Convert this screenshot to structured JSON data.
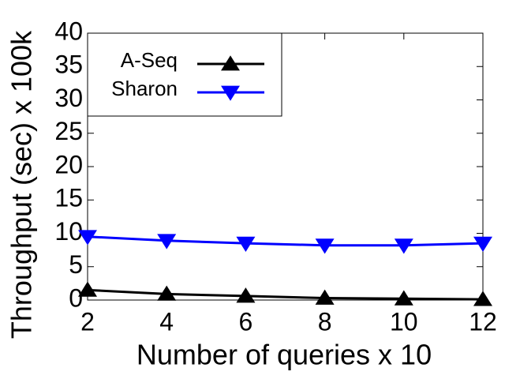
{
  "chart_data": {
    "type": "line",
    "xlabel": "Number of queries x 10",
    "ylabel": "Throughput (sec) x 100k",
    "x": [
      2,
      4,
      6,
      8,
      10,
      12
    ],
    "series": [
      {
        "name": "A-Seq",
        "color": "#000000",
        "marker": "triangle-up",
        "values": [
          1.5,
          0.9,
          0.6,
          0.3,
          0.2,
          0.1
        ]
      },
      {
        "name": "Sharon",
        "color": "#0000ff",
        "marker": "triangle-down",
        "values": [
          9.5,
          8.9,
          8.5,
          8.2,
          8.2,
          8.5
        ]
      }
    ],
    "xlim": [
      2,
      12
    ],
    "xticks": [
      2,
      4,
      6,
      8,
      10,
      12
    ],
    "ylim": [
      0,
      40
    ],
    "yticks": [
      0,
      5,
      10,
      15,
      20,
      25,
      30,
      35,
      40
    ],
    "grid": false,
    "legend": "upper left"
  }
}
